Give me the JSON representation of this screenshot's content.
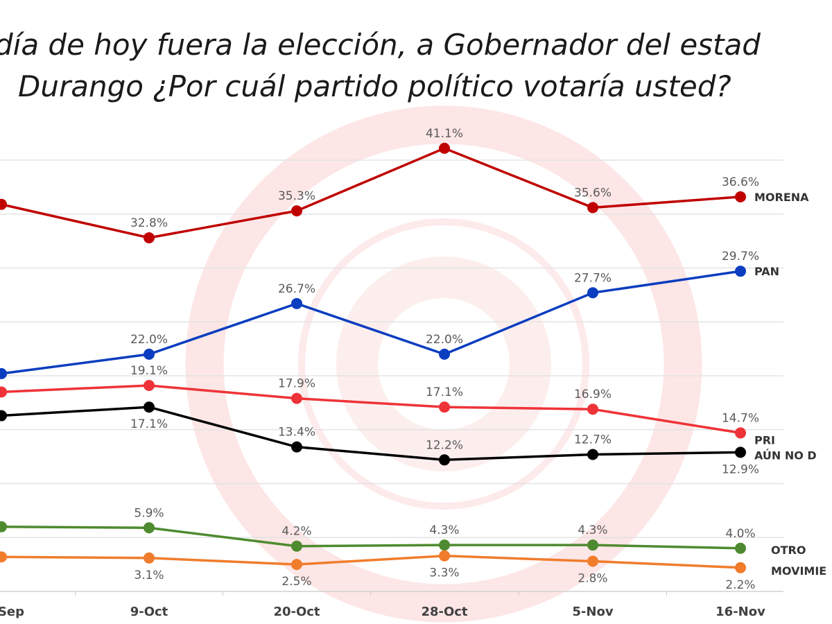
{
  "title_lines": [
    "día de hoy fuera la elección, a Gobernador del estad",
    "Durango  ¿Por cuál partido político votaría usted?"
  ],
  "chart_data": {
    "type": "line",
    "title": "día de hoy fuera la elección, a Gobernador del estad / Durango  ¿Por cuál partido político votaría usted?",
    "categories": [
      "Sep",
      "9-Oct",
      "20-Oct",
      "28-Oct",
      "5-Nov",
      "16-Nov"
    ],
    "ylim": [
      0,
      40
    ],
    "grid": true,
    "legend": "right, inline at line ends",
    "series": [
      {
        "name": "MORENA",
        "color": "#c00000",
        "values": [
          35.9,
          32.8,
          35.3,
          41.1,
          35.6,
          36.6
        ],
        "labels": [
          "",
          "32.8%",
          "35.3%",
          "41.1%",
          "35.6%",
          "36.6%"
        ]
      },
      {
        "name": "PAN",
        "color": "#0a3dbf",
        "values": [
          20.2,
          22.0,
          26.7,
          22.0,
          27.7,
          29.7
        ],
        "labels": [
          "",
          "22.0%",
          "26.7%",
          "22.0%",
          "27.7%",
          "29.7%"
        ]
      },
      {
        "name": "PRI",
        "color": "#ee3338",
        "values": [
          18.5,
          19.1,
          17.9,
          17.1,
          16.9,
          14.7
        ],
        "labels": [
          "",
          "19.1%",
          "17.9%",
          "17.1%",
          "16.9%",
          "14.7%"
        ]
      },
      {
        "name": "AÚN NO D",
        "color": "#000000",
        "values": [
          16.3,
          17.1,
          13.4,
          12.2,
          12.7,
          12.9
        ],
        "labels": [
          "",
          "17.1%",
          "13.4%",
          "12.2%",
          "12.7%",
          "12.9%"
        ]
      },
      {
        "name": "OTRO",
        "color": "#4e8a2f",
        "values": [
          6.0,
          5.9,
          4.2,
          4.3,
          4.3,
          4.0
        ],
        "labels": [
          "",
          "5.9%",
          "4.2%",
          "4.3%",
          "4.3%",
          "4.0%"
        ]
      },
      {
        "name": "MOVIMIE",
        "color": "#f07c2c",
        "values": [
          3.2,
          3.1,
          2.5,
          3.3,
          2.8,
          2.2
        ],
        "labels": [
          "",
          "3.1%",
          "2.5%",
          "3.3%",
          "2.8%",
          "2.2%"
        ]
      }
    ]
  }
}
